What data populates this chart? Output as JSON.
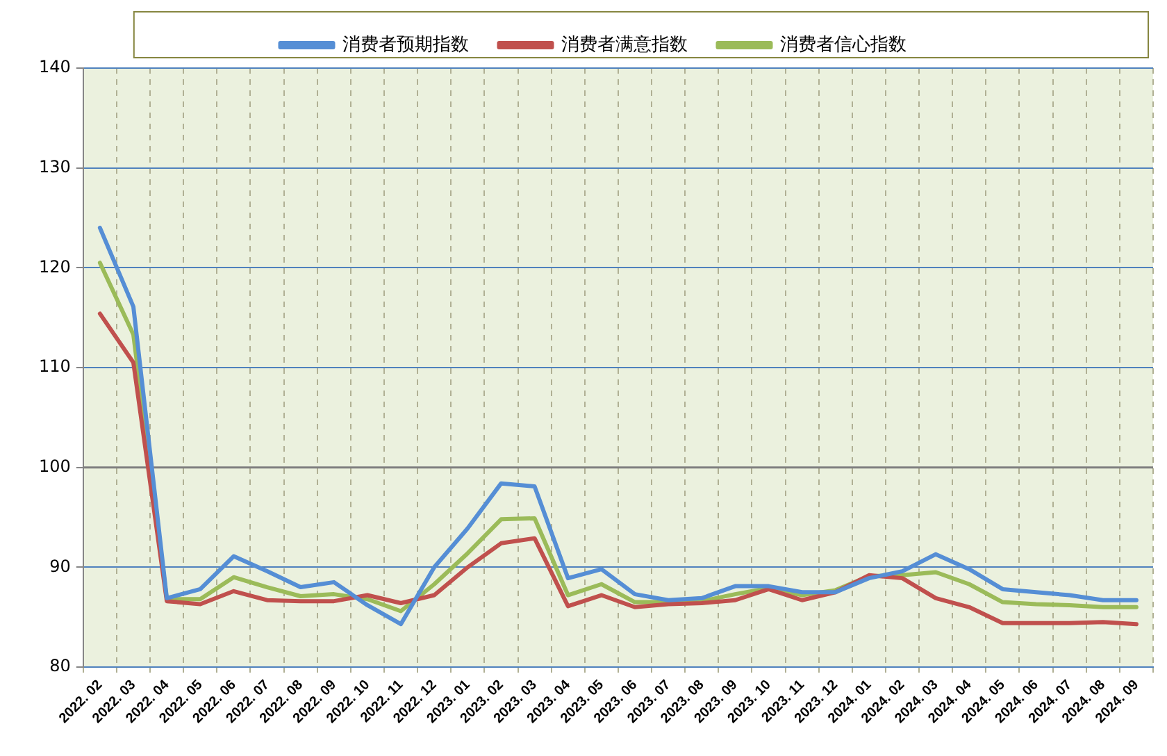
{
  "chart_data": {
    "type": "line",
    "categories": [
      "2022. 02",
      "2022. 03",
      "2022. 04",
      "2022. 05",
      "2022. 06",
      "2022. 07",
      "2022. 08",
      "2022. 09",
      "2022. 10",
      "2022. 11",
      "2022. 12",
      "2023. 01",
      "2023. 02",
      "2023. 03",
      "2023. 04",
      "2023. 05",
      "2023. 06",
      "2023. 07",
      "2023. 08",
      "2023. 09",
      "2023. 10",
      "2023. 11",
      "2023. 12",
      "2024. 01",
      "2024. 02",
      "2024. 03",
      "2024. 04",
      "2024. 05",
      "2024. 06",
      "2024. 07",
      "2024. 08",
      "2024. 09"
    ],
    "series": [
      {
        "name": "消费者预期指数",
        "color": "#558ed5",
        "values": [
          124.0,
          116.1,
          86.9,
          87.8,
          91.1,
          89.6,
          88.0,
          88.5,
          86.2,
          84.3,
          90.0,
          93.9,
          98.4,
          98.1,
          88.9,
          89.8,
          87.3,
          86.7,
          86.9,
          88.1,
          88.1,
          87.5,
          87.5,
          88.9,
          89.6,
          91.3,
          89.8,
          87.8,
          87.5,
          87.2,
          86.7,
          86.7
        ]
      },
      {
        "name": "消费者满意指数",
        "color": "#c0504d",
        "values": [
          115.4,
          110.5,
          86.6,
          86.3,
          87.6,
          86.7,
          86.6,
          86.6,
          87.2,
          86.4,
          87.2,
          90.0,
          92.4,
          92.9,
          86.1,
          87.2,
          86.0,
          86.3,
          86.4,
          86.7,
          87.8,
          86.7,
          87.5,
          89.2,
          88.9,
          86.9,
          86.0,
          84.4,
          84.4,
          84.4,
          84.5,
          84.3
        ]
      },
      {
        "name": "消费者信心指数",
        "color": "#9bbb59",
        "values": [
          120.5,
          113.3,
          86.8,
          86.8,
          89.0,
          88.0,
          87.1,
          87.3,
          86.8,
          85.6,
          88.3,
          91.4,
          94.8,
          94.9,
          87.2,
          88.3,
          86.5,
          86.5,
          86.6,
          87.3,
          87.9,
          87.2,
          87.7,
          89.1,
          89.2,
          89.5,
          88.3,
          86.5,
          86.3,
          86.2,
          86.0,
          86.0
        ]
      }
    ],
    "ylim": [
      80,
      140
    ],
    "yticks": [
      80,
      90,
      100,
      110,
      120,
      130,
      140
    ],
    "grid": true,
    "legend": "top",
    "marker": "none",
    "line_style": "solid",
    "ref_lines": [
      {
        "axis": "y",
        "value": 100,
        "color": "#7f7f7f"
      }
    ]
  }
}
